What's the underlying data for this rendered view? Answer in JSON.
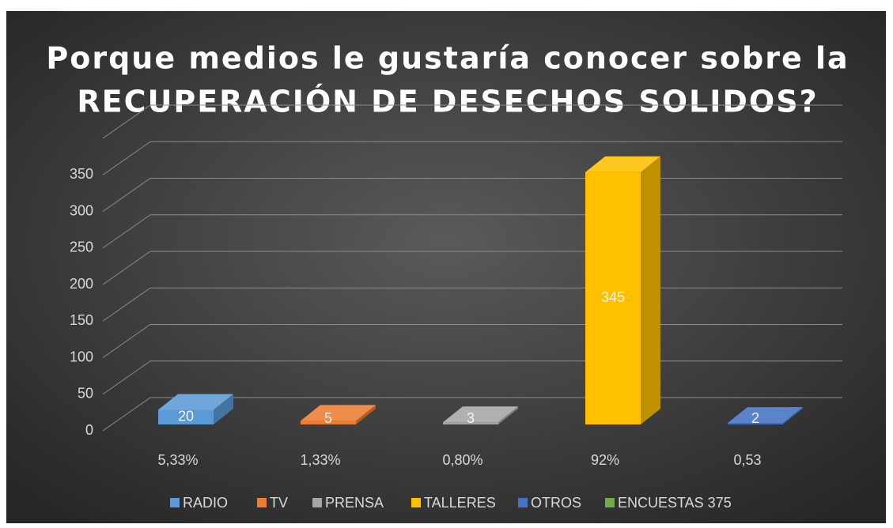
{
  "chart_data": {
    "type": "bar3d",
    "title": [
      "Porque medios le gustaría conocer sobre la",
      "RECUPERACIÓN DE DESECHOS SOLIDOS?"
    ],
    "categories": [
      "5,33%",
      "1,33%",
      "0,80%",
      "92%",
      "0,53"
    ],
    "series": [
      {
        "name": "RADIO",
        "color": "#5b9bd5",
        "values": [
          20,
          null,
          null,
          null,
          null
        ]
      },
      {
        "name": "TV",
        "color": "#ed7d31",
        "values": [
          null,
          5,
          null,
          null,
          null
        ]
      },
      {
        "name": "PRENSA",
        "color": "#a5a5a5",
        "values": [
          null,
          null,
          3,
          null,
          null
        ]
      },
      {
        "name": "TALLERES",
        "color": "#ffc000",
        "values": [
          null,
          null,
          null,
          345,
          null
        ]
      },
      {
        "name": "OTROS",
        "color": "#4472c4",
        "values": [
          null,
          null,
          null,
          null,
          2
        ]
      },
      {
        "name": "ENCUESTAS 375",
        "color": "#70ad47",
        "values": [
          null,
          null,
          null,
          null,
          null
        ]
      }
    ],
    "ylim": [
      0,
      400
    ],
    "yticks": [
      0,
      50,
      100,
      150,
      200,
      250,
      300,
      350
    ],
    "grid": true,
    "legend": "bottom"
  }
}
